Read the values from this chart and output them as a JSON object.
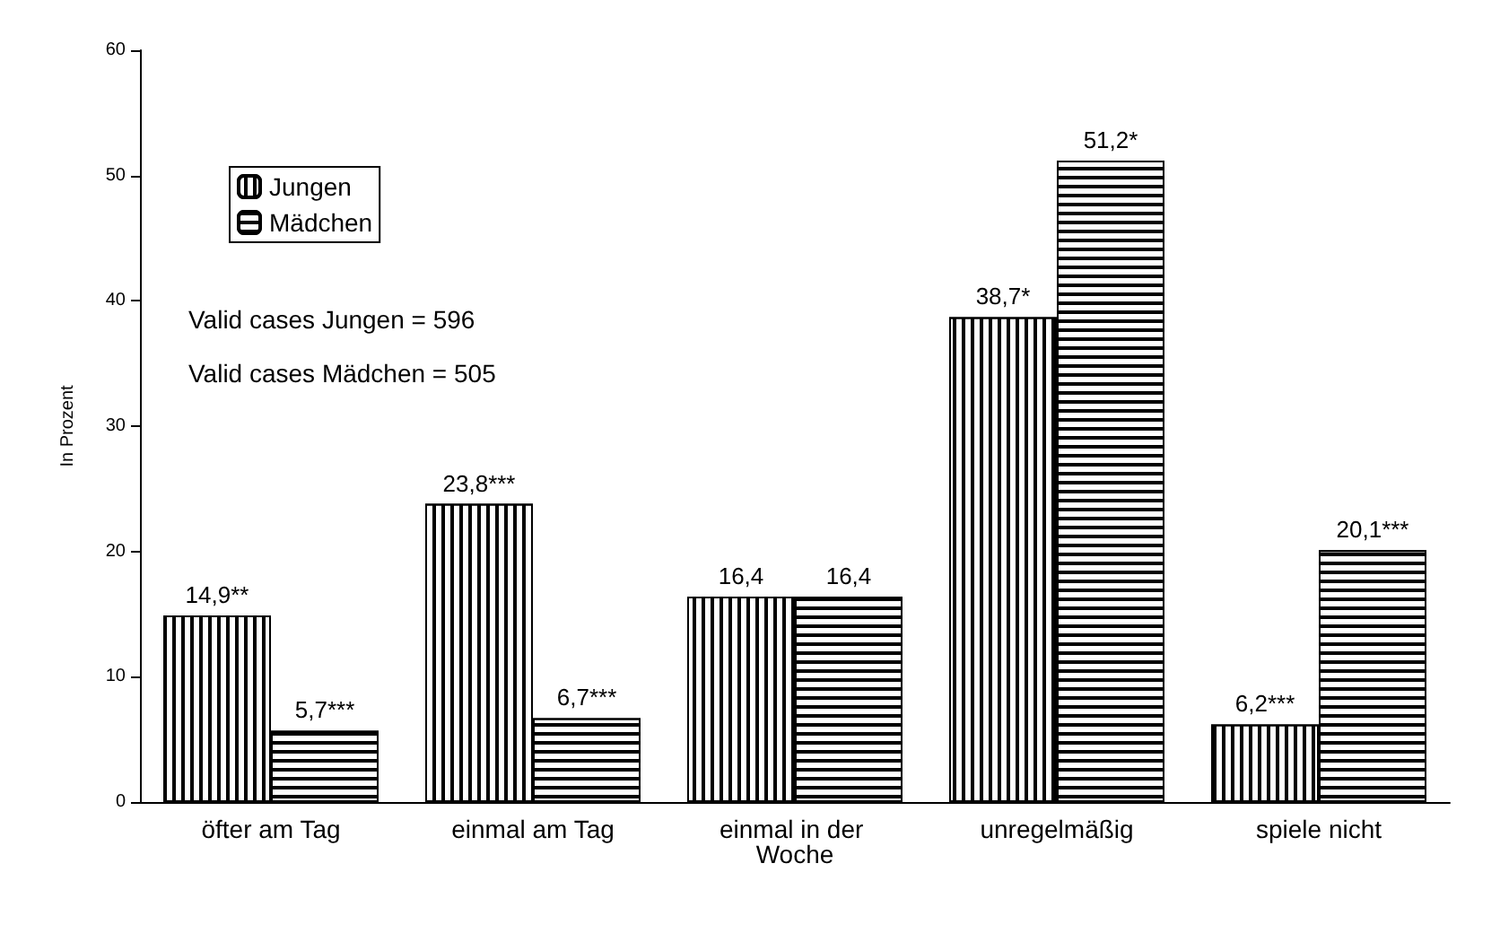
{
  "chart_data": {
    "type": "bar",
    "ylabel": "In Prozent",
    "categories": [
      "öfter am Tag",
      "einmal am Tag",
      "einmal in der Woche",
      "unregelmäßig",
      "spiele nicht"
    ],
    "series": [
      {
        "name": "Jungen",
        "color": "#ffffff",
        "values": [
          14.9,
          23.8,
          16.4,
          38.7,
          6.2
        ],
        "value_labels": [
          "14,9**",
          "23,8***",
          "16,4",
          "38,7*",
          "6,2***"
        ]
      },
      {
        "name": "Mädchen",
        "color": "#ffffff",
        "values": [
          5.7,
          6.7,
          16.4,
          51.2,
          20.1
        ],
        "value_labels": [
          "5,7***",
          "6,7***",
          "16,4",
          "51,2*",
          "20,1***"
        ]
      }
    ],
    "ylim": [
      0,
      60
    ],
    "yticks": [
      0,
      10,
      20,
      30,
      40,
      50,
      60
    ],
    "legend": "top left",
    "annotations": [
      "Valid cases Jungen = 596",
      "Valid cases Mädchen = 505"
    ]
  }
}
